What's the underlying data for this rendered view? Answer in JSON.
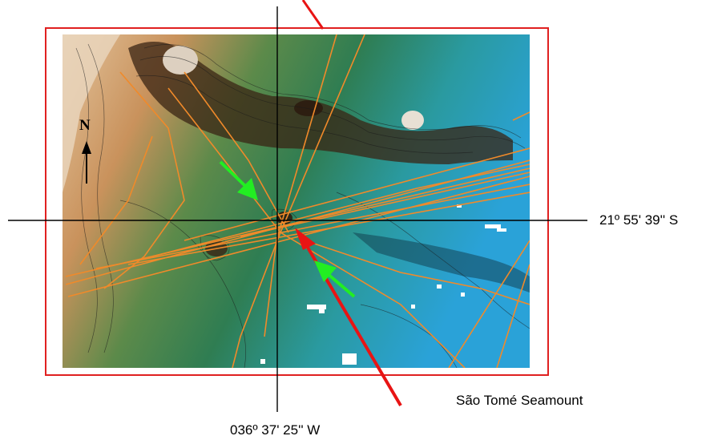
{
  "map": {
    "latitude_label": "21º 55' 39'' S",
    "longitude_label": "036º 37' 25'' W",
    "seamount_label": "São Tomé Seamount",
    "north_label": "N"
  },
  "colors": {
    "frame": "#e02020",
    "ship_tracks": "#f08a2a",
    "green_arrows": "#22ee22",
    "red_arrow": "#e81414",
    "crosshair": "#000000",
    "shallow": "#d9b48a",
    "mid": "#3f8a55",
    "deep": "#1f9fd0"
  },
  "icons": [
    "north-arrow-icon",
    "green-arrow-icon",
    "red-arrow-icon"
  ]
}
